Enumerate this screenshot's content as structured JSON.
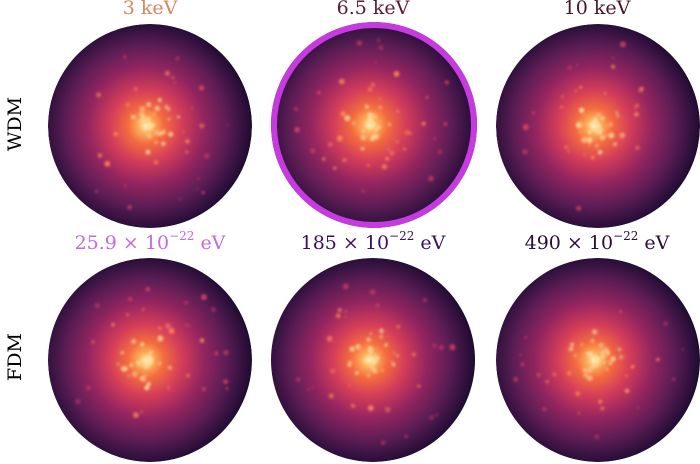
{
  "figure": {
    "rows": [
      {
        "label": "WDM",
        "panels": [
          {
            "title": "3 keV",
            "title_color": "#d2885a",
            "highlighted": false
          },
          {
            "title": "6.5 keV",
            "title_color": "#5a1a2e",
            "highlighted": true
          },
          {
            "title": "10 keV",
            "title_color": "#4a1428",
            "highlighted": false
          }
        ]
      },
      {
        "label": "FDM",
        "panels": [
          {
            "title_prefix": "25.9 × 10",
            "title_exp": "−22",
            "title_unit": " eV",
            "title_color": "#c26ae0",
            "highlighted": false
          },
          {
            "title_prefix": "185 × 10",
            "title_exp": "−22",
            "title_unit": " eV",
            "title_color": "#3a1060",
            "highlighted": false
          },
          {
            "title_prefix": "490 × 10",
            "title_exp": "−22",
            "title_unit": " eV",
            "title_color": "#2a0c3a",
            "highlighted": false
          }
        ]
      }
    ],
    "highlight_color": "#c53be0",
    "colormap": [
      "#0e0916",
      "#2a0f3a",
      "#5c1d55",
      "#93255f",
      "#d43d59",
      "#f46c3e",
      "#fcb15a",
      "#fff3c8"
    ]
  }
}
